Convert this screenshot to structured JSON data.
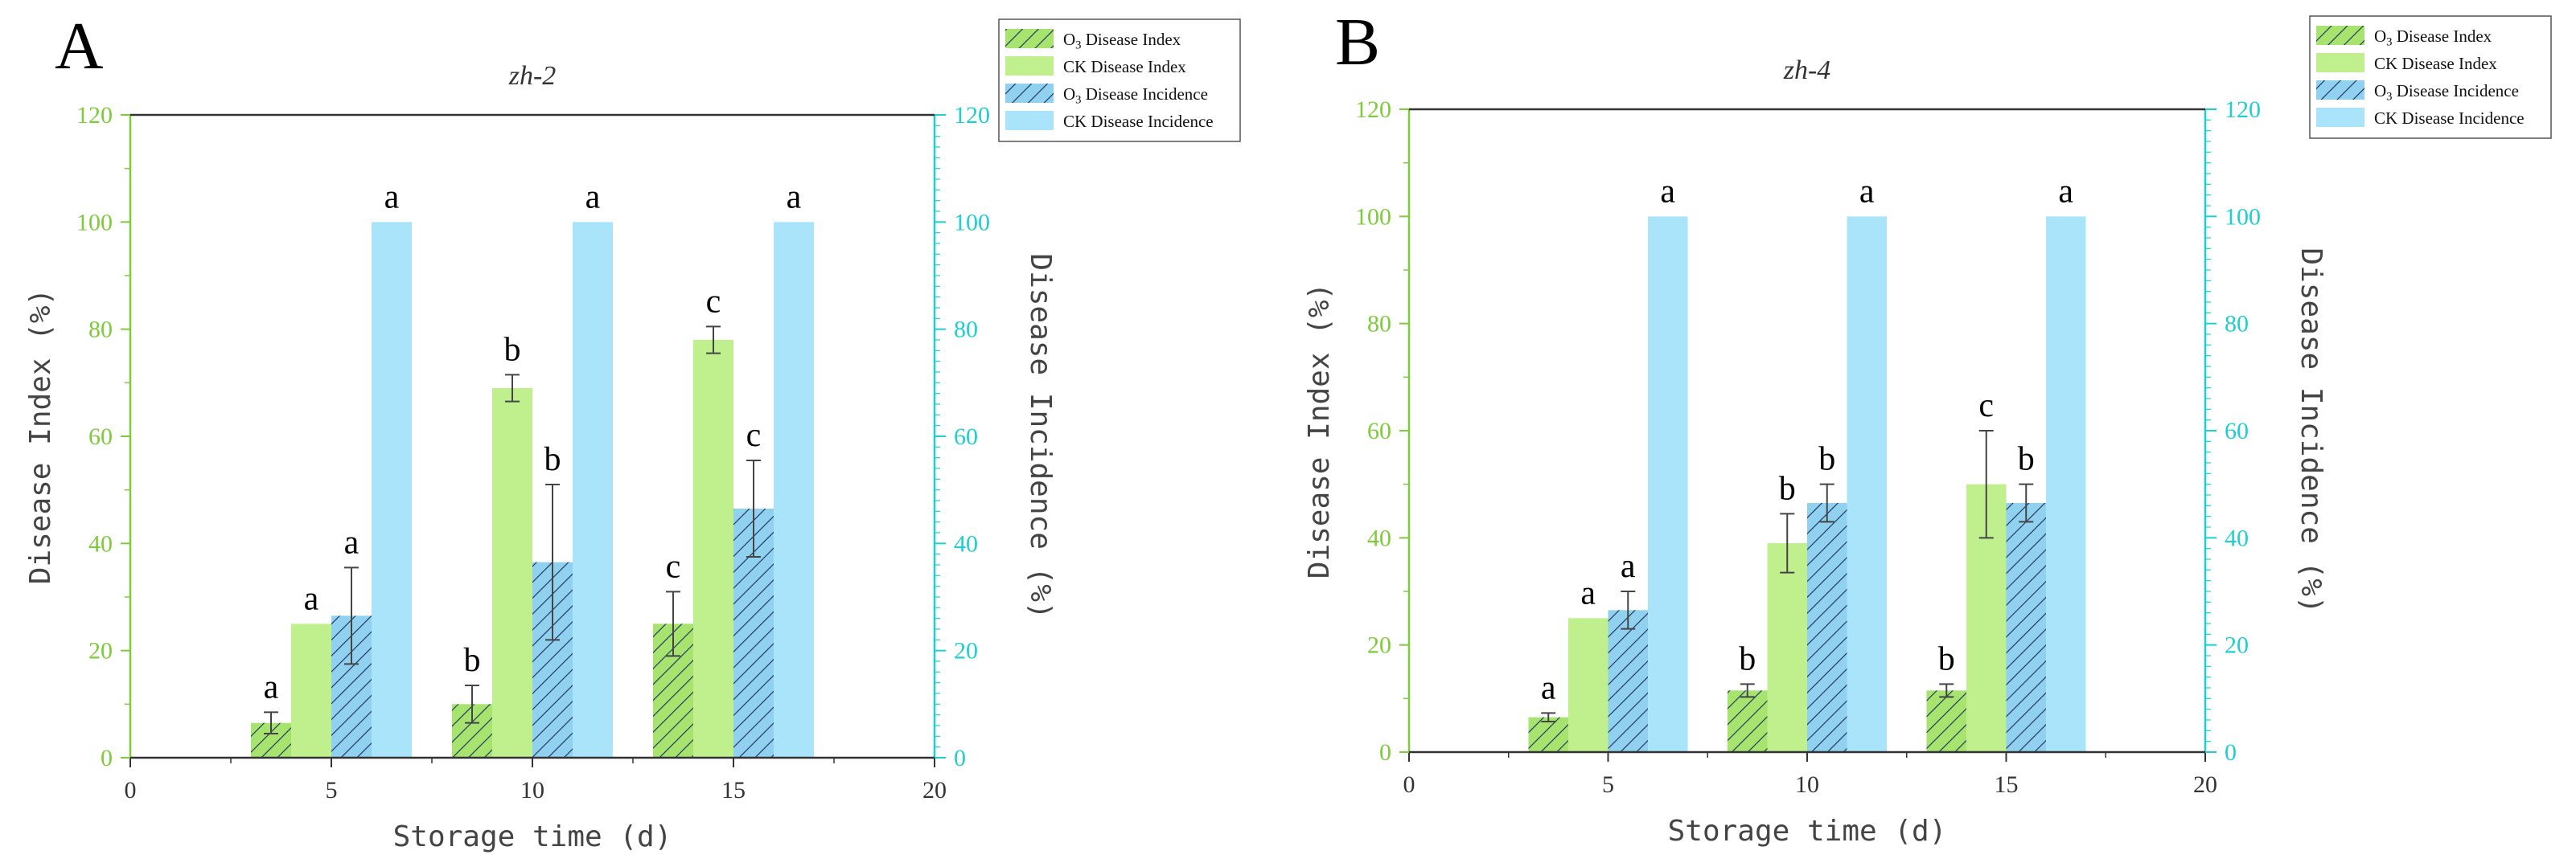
{
  "figure": {
    "colors": {
      "o3_index": "#a6e36f",
      "ck_index": "#c0f08e",
      "o3_incidence": "#8fd1ee",
      "ck_incidence": "#a9e4fa",
      "left_axis": "#7ecb3a",
      "right_axis": "#1ecfcf",
      "hatch": "#1a2a5a",
      "text": "#333333"
    }
  },
  "chart_data": [
    {
      "type": "bar",
      "panel_label": "A",
      "title": "zh-2",
      "xlabel": "Storage time (d)",
      "ylabel": "Disease Index (%)",
      "y2label": "Disease Incidence (%)",
      "xlim": [
        0,
        20
      ],
      "ylim": [
        0,
        120
      ],
      "y2lim": [
        0,
        120
      ],
      "xticks": [
        "0",
        "5",
        "10",
        "15",
        "20"
      ],
      "yticks": [
        "0",
        "20",
        "40",
        "60",
        "80",
        "100",
        "120"
      ],
      "y2ticks": [
        "0",
        "20",
        "40",
        "60",
        "80",
        "100",
        "120"
      ],
      "x": [
        5,
        10,
        15
      ],
      "legend": {
        "position": "top-right",
        "entries": [
          "O3 Disease Index",
          "CK Disease Index",
          "O3 Disease Incidence",
          "CK Disease Incidence"
        ]
      },
      "series": [
        {
          "name": "O3 Disease Index",
          "pattern": "hatch",
          "axis": "left",
          "values": [
            6.5,
            10,
            25
          ],
          "errors": [
            2,
            3.5,
            6
          ],
          "letters": [
            "a",
            "b",
            "c"
          ]
        },
        {
          "name": "CK Disease Index",
          "pattern": "solid",
          "axis": "left",
          "values": [
            25,
            69,
            78
          ],
          "errors": [
            0,
            2.5,
            2.5
          ],
          "letters": [
            "a",
            "b",
            "c"
          ]
        },
        {
          "name": "O3 Disease Incidence",
          "pattern": "hatch",
          "axis": "right",
          "values": [
            26.5,
            36.5,
            46.5
          ],
          "errors": [
            9,
            14.5,
            9
          ],
          "letters": [
            "a",
            "b",
            "c"
          ]
        },
        {
          "name": "CK Disease Incidence",
          "pattern": "solid",
          "axis": "right",
          "values": [
            100,
            100,
            100
          ],
          "errors": [
            0,
            0,
            0
          ],
          "letters": [
            "a",
            "a",
            "a"
          ]
        }
      ]
    },
    {
      "type": "bar",
      "panel_label": "B",
      "title": "zh-4",
      "xlabel": "Storage time (d)",
      "ylabel": "Disease Index (%)",
      "y2label": "Disease Incidence (%)",
      "xlim": [
        0,
        20
      ],
      "ylim": [
        0,
        120
      ],
      "y2lim": [
        0,
        120
      ],
      "xticks": [
        "0",
        "5",
        "10",
        "15",
        "20"
      ],
      "yticks": [
        "0",
        "20",
        "40",
        "60",
        "80",
        "100",
        "120"
      ],
      "y2ticks": [
        "0",
        "20",
        "40",
        "60",
        "80",
        "100",
        "120"
      ],
      "x": [
        5,
        10,
        15
      ],
      "legend": {
        "position": "top-right",
        "entries": [
          "O3 Disease Index",
          "CK Disease Index",
          "O3 Disease Incidence",
          "CK Disease Incidence"
        ]
      },
      "series": [
        {
          "name": "O3 Disease Index",
          "pattern": "hatch",
          "axis": "left",
          "values": [
            6.5,
            11.5,
            11.5
          ],
          "errors": [
            0.8,
            1.2,
            1.2
          ],
          "letters": [
            "a",
            "b",
            "b"
          ]
        },
        {
          "name": "CK Disease Index",
          "pattern": "solid",
          "axis": "left",
          "values": [
            25,
            39,
            50
          ],
          "errors": [
            0,
            5.5,
            10
          ],
          "letters": [
            "a",
            "b",
            "c"
          ]
        },
        {
          "name": "O3 Disease Incidence",
          "pattern": "hatch",
          "axis": "right",
          "values": [
            26.5,
            46.5,
            46.5
          ],
          "errors": [
            3.5,
            3.5,
            3.5
          ],
          "letters": [
            "a",
            "b",
            "b"
          ]
        },
        {
          "name": "CK Disease Incidence",
          "pattern": "solid",
          "axis": "right",
          "values": [
            100,
            100,
            100
          ],
          "errors": [
            0,
            0,
            0
          ],
          "letters": [
            "a",
            "a",
            "a"
          ]
        }
      ]
    }
  ]
}
